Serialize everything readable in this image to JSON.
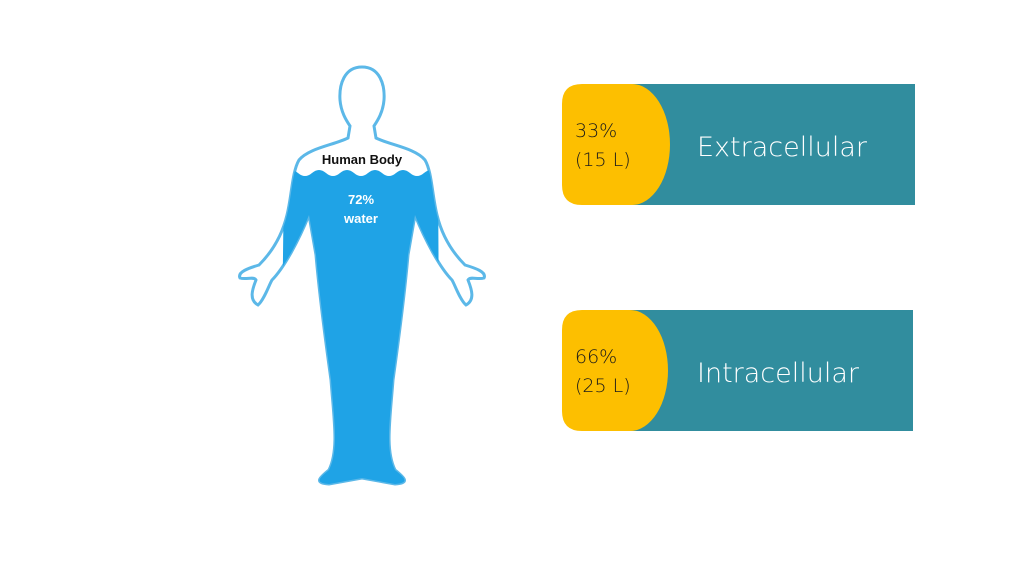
{
  "figure": {
    "label": "Human Body",
    "water_percent": "72%",
    "water_word": "water"
  },
  "cards": [
    {
      "percent": "33%",
      "volume": "(15 L)",
      "label": "Extracellular"
    },
    {
      "percent": "66%",
      "volume": "(25 L)",
      "label": "Intracellular"
    }
  ]
}
